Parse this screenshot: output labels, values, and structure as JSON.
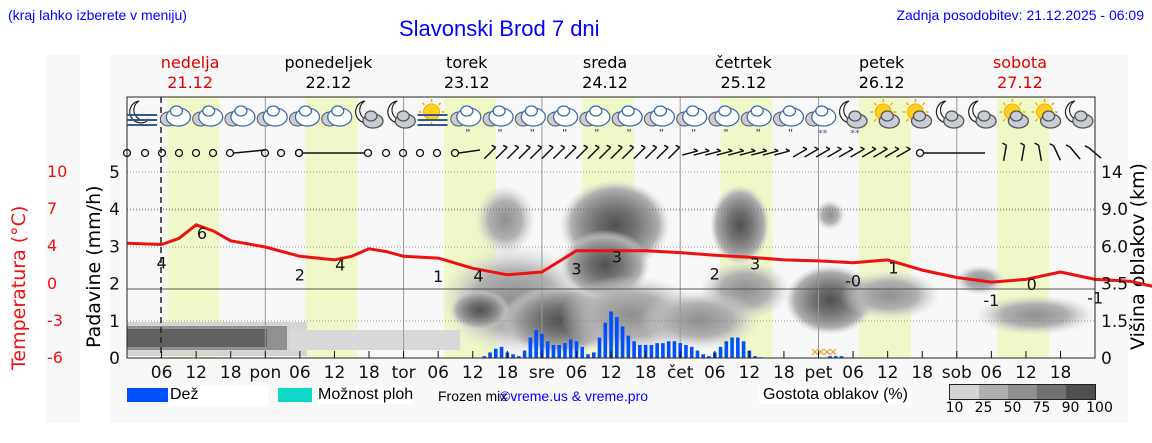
{
  "header": {
    "left_note": "(kraj lahko izberete v meniju)",
    "title": "Slavonski Brod 7 dni",
    "updated": "Zadnja posodobitev: 21.12.2025 - 06:09"
  },
  "days": [
    {
      "name": "nedelja",
      "date": "21.12",
      "color": "#dd0000"
    },
    {
      "name": "ponedeljek",
      "date": "22.12",
      "color": "#000000"
    },
    {
      "name": "torek",
      "date": "23.12",
      "color": "#000000"
    },
    {
      "name": "sreda",
      "date": "24.12",
      "color": "#000000"
    },
    {
      "name": "četrtek",
      "date": "25.12",
      "color": "#000000"
    },
    {
      "name": "petek",
      "date": "26.12",
      "color": "#000000"
    },
    {
      "name": "sobota",
      "date": "27.12",
      "color": "#dd0000"
    }
  ],
  "axes": {
    "left_temp_label": "Temperatura (°C)",
    "left_temp_ticks": [
      "10",
      "7",
      "4",
      "0",
      "-3",
      "-6"
    ],
    "left_precip_label": "Padavine (mm/h)",
    "left_precip_ticks": [
      "5",
      "4",
      "3",
      "2",
      "1",
      "0"
    ],
    "right_label": "Višina oblakov (km)",
    "right_ticks": [
      "14",
      "9.0",
      "6.0",
      "3.5",
      "1.5",
      "0"
    ],
    "x_ticks": [
      "06",
      "12",
      "18",
      "pon",
      "06",
      "12",
      "18",
      "tor",
      "06",
      "12",
      "18",
      "sre",
      "06",
      "12",
      "18",
      "čet",
      "06",
      "12",
      "18",
      "pet",
      "06",
      "12",
      "18",
      "sob",
      "06",
      "12",
      "18"
    ]
  },
  "legend": {
    "rain_label": "Dež",
    "rain_color": "#0050ff",
    "shower_label": "Možnost ploh",
    "shower_color": "#10d8c8",
    "frozen_label": "Frozen mix",
    "credit": "©vreme.us & vreme.pro",
    "cloud_label": "Gostota oblakov (%)",
    "cloud_scale": [
      "10",
      "25",
      "50",
      "75",
      "90",
      "100"
    ],
    "cloud_colors": [
      "#d4d4d4",
      "#b0b0b0",
      "#909090",
      "#707070",
      "#505050"
    ]
  },
  "colors": {
    "temp_line": "#ee1111",
    "daylight": "#f0f8c8",
    "snow_marker": "#f0a020"
  },
  "chart_data": {
    "type": "line",
    "title": "Slavonski Brod 7 dni",
    "xlabel": "",
    "ylabel": "Temperatura (°C) / Padavine (mm/h)",
    "x_range_days": [
      "21.12",
      "27.12"
    ],
    "temperature": {
      "name": "Temperatura (°C)",
      "ylim": [
        -6,
        10
      ],
      "points_hours_from_start": [
        [
          0,
          4.3
        ],
        [
          6,
          4.2
        ],
        [
          9,
          4.7
        ],
        [
          12,
          5.8
        ],
        [
          15,
          5.3
        ],
        [
          18,
          4.5
        ],
        [
          24,
          4.0
        ],
        [
          30,
          3.0
        ],
        [
          36,
          2.6
        ],
        [
          39,
          3.0
        ],
        [
          42,
          3.8
        ],
        [
          45,
          3.5
        ],
        [
          48,
          3.0
        ],
        [
          54,
          2.8
        ],
        [
          60,
          1.7
        ],
        [
          66,
          1.0
        ],
        [
          72,
          1.3
        ],
        [
          78,
          3.6
        ],
        [
          84,
          3.6
        ],
        [
          90,
          3.6
        ],
        [
          96,
          3.4
        ],
        [
          102,
          3.1
        ],
        [
          108,
          2.9
        ],
        [
          114,
          2.6
        ],
        [
          120,
          2.5
        ],
        [
          126,
          2.3
        ],
        [
          132,
          2.6
        ],
        [
          138,
          1.5
        ],
        [
          144,
          0.7
        ],
        [
          150,
          0.2
        ],
        [
          156,
          0.5
        ],
        [
          162,
          1.3
        ],
        [
          168,
          0.5
        ],
        [
          174,
          0.3
        ],
        [
          180,
          -0.4
        ],
        [
          186,
          -0.8
        ],
        [
          192,
          0.0
        ],
        [
          198,
          -0.9
        ],
        [
          204,
          -1.6
        ]
      ],
      "labels": [
        {
          "hour": 6,
          "text": "4"
        },
        {
          "hour": 13,
          "text": "6"
        },
        {
          "hour": 30,
          "text": "2"
        },
        {
          "hour": 37,
          "text": "4"
        },
        {
          "hour": 54,
          "text": "1"
        },
        {
          "hour": 61,
          "text": "4"
        },
        {
          "hour": 78,
          "text": "3"
        },
        {
          "hour": 85,
          "text": "3"
        },
        {
          "hour": 102,
          "text": "2"
        },
        {
          "hour": 109,
          "text": "3"
        },
        {
          "hour": 126,
          "text": "-0"
        },
        {
          "hour": 133,
          "text": "1"
        },
        {
          "hour": 150,
          "text": "-1"
        },
        {
          "hour": 157,
          "text": "0"
        },
        {
          "hour": 168,
          "text": "-1"
        }
      ]
    },
    "precipitation": {
      "name": "Dež (mm/h)",
      "ylim": [
        0,
        5
      ],
      "bars_hour_value": [
        [
          62,
          0.05
        ],
        [
          63,
          0.15
        ],
        [
          64,
          0.25
        ],
        [
          65,
          0.3
        ],
        [
          66,
          0.15
        ],
        [
          67,
          0.1
        ],
        [
          68,
          0.05
        ],
        [
          69,
          0.2
        ],
        [
          70,
          0.55
        ],
        [
          71,
          0.75
        ],
        [
          72,
          0.65
        ],
        [
          73,
          0.45
        ],
        [
          74,
          0.35
        ],
        [
          75,
          0.35
        ],
        [
          76,
          0.4
        ],
        [
          77,
          0.5
        ],
        [
          78,
          0.45
        ],
        [
          79,
          0.3
        ],
        [
          80,
          0.1
        ],
        [
          81,
          0.15
        ],
        [
          82,
          0.55
        ],
        [
          83,
          0.95
        ],
        [
          84,
          1.25
        ],
        [
          85,
          1.1
        ],
        [
          86,
          0.85
        ],
        [
          87,
          0.6
        ],
        [
          88,
          0.45
        ],
        [
          89,
          0.35
        ],
        [
          90,
          0.35
        ],
        [
          91,
          0.35
        ],
        [
          92,
          0.4
        ],
        [
          93,
          0.4
        ],
        [
          94,
          0.45
        ],
        [
          95,
          0.45
        ],
        [
          96,
          0.4
        ],
        [
          97,
          0.35
        ],
        [
          98,
          0.3
        ],
        [
          99,
          0.2
        ],
        [
          100,
          0.1
        ],
        [
          101,
          0.05
        ],
        [
          102,
          0.15
        ],
        [
          103,
          0.3
        ],
        [
          104,
          0.45
        ],
        [
          105,
          0.55
        ],
        [
          106,
          0.55
        ],
        [
          107,
          0.45
        ],
        [
          108,
          0.2
        ],
        [
          109,
          0.05
        ],
        [
          110,
          0.02
        ],
        [
          122,
          0.05
        ],
        [
          123,
          0.05
        ],
        [
          124,
          0.05
        ]
      ]
    },
    "frozen_mix_marker_hours": [
      122,
      124
    ],
    "cloud_density_scale_percent": [
      10,
      25,
      50,
      75,
      90,
      100
    ],
    "right_axis": {
      "label": "Višina oblakov (km)",
      "ticks": [
        0,
        1.5,
        3.5,
        6.0,
        9.0,
        14
      ]
    },
    "legend_position": "bottom",
    "grid": true
  },
  "weather_icons": [
    "moon-fog",
    "cloud",
    "cloud",
    "cloud",
    "cloud",
    "cloud",
    "cloud",
    "moon-cloud",
    "moon-cloud",
    "sun-fog",
    "cloud-rain",
    "cloud-rain",
    "cloud-rain",
    "cloud-rain",
    "cloud-rain",
    "cloud-rain",
    "cloud-rain",
    "cloud-rain",
    "cloud-rain",
    "cloud-rain",
    "cloud-rain",
    "cloud-snow",
    "moon-cloud-snow",
    "sun-cloud",
    "sun-cloud",
    "moon-cloud",
    "moon-cloud",
    "sun-cloud",
    "sun-cloud",
    "moon-cloud"
  ]
}
